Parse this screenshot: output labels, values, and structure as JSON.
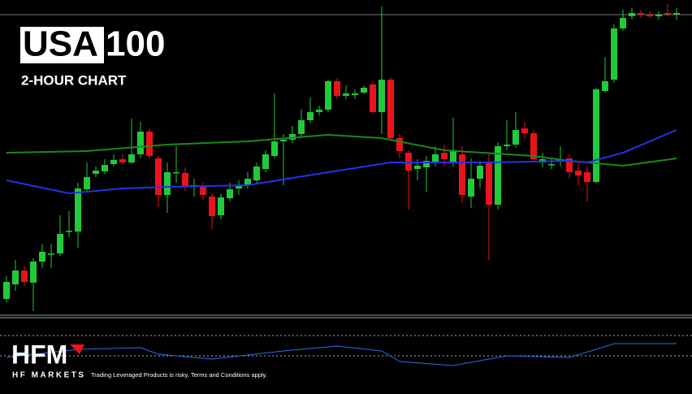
{
  "chart_data": [
    {
      "type": "candlestick",
      "title": {
        "boxed": "USA",
        "plain": "100"
      },
      "subtitle": "2-HOUR CHART",
      "ylim": [
        0,
        390
      ],
      "up_color": "#22c93a",
      "down_color": "#e8141c",
      "open": [
        22,
        40,
        57,
        42,
        68,
        78,
        78,
        105,
        105,
        157,
        176,
        179,
        188,
        194,
        190,
        200,
        228,
        195,
        150,
        177,
        177,
        160,
        160,
        148,
        125,
        146,
        158,
        162,
        168,
        182,
        198,
        216,
        218,
        225,
        242,
        252,
        255,
        290,
        272,
        273,
        276,
        286,
        252,
        292,
        220,
        202,
        182,
        184,
        191,
        202,
        190,
        200,
        148,
        170,
        190,
        138,
        210,
        212,
        232,
        226,
        190,
        188,
        192,
        195,
        180,
        178,
        166,
        278,
        292,
        355,
        370,
        374,
        372,
        370,
        374,
        373
      ],
      "high": [
        50,
        70,
        62,
        72,
        90,
        90,
        125,
        130,
        165,
        190,
        185,
        194,
        200,
        200,
        244,
        240,
        232,
        198,
        190,
        210,
        184,
        170,
        165,
        152,
        152,
        165,
        168,
        178,
        190,
        205,
        275,
        225,
        235,
        255,
        270,
        260,
        292,
        294,
        285,
        280,
        285,
        290,
        382,
        295,
        225,
        205,
        194,
        198,
        210,
        212,
        245,
        210,
        195,
        192,
        200,
        215,
        242,
        252,
        240,
        230,
        202,
        194,
        210,
        200,
        190,
        185,
        282,
        320,
        360,
        378,
        380,
        378,
        376,
        376,
        385,
        380
      ],
      "low": [
        18,
        32,
        38,
        7,
        60,
        60,
        75,
        98,
        85,
        154,
        172,
        176,
        185,
        188,
        188,
        195,
        195,
        135,
        128,
        165,
        155,
        148,
        144,
        108,
        120,
        142,
        150,
        158,
        164,
        178,
        195,
        162,
        214,
        220,
        238,
        248,
        252,
        268,
        268,
        268,
        274,
        250,
        225,
        218,
        195,
        132,
        168,
        154,
        185,
        185,
        185,
        140,
        134,
        158,
        70,
        132,
        205,
        208,
        220,
        190,
        184,
        182,
        185,
        170,
        162,
        142,
        164,
        276,
        288,
        352,
        366,
        368,
        368,
        366,
        370,
        366
      ],
      "close": [
        43,
        57,
        43,
        68,
        80,
        78,
        102,
        106,
        158,
        172,
        180,
        187,
        193,
        190,
        200,
        228,
        198,
        150,
        178,
        178,
        160,
        162,
        150,
        124,
        147,
        157,
        162,
        170,
        185,
        200,
        216,
        218,
        225,
        242,
        252,
        255,
        290,
        272,
        275,
        275,
        282,
        252,
        292,
        220,
        204,
        180,
        186,
        192,
        200,
        194,
        205,
        150,
        170,
        186,
        138,
        210,
        212,
        230,
        226,
        194,
        194,
        188,
        194,
        178,
        174,
        166,
        280,
        290,
        355,
        368,
        374,
        372,
        370,
        372,
        373,
        374
      ],
      "price_line": 372,
      "series": [
        {
          "color": "#1a8a1a",
          "x": [
            0,
            9,
            18,
            27,
            36,
            42,
            49,
            59,
            63,
            69,
            75
          ],
          "values": [
            202,
            204,
            212,
            216,
            224,
            220,
            205,
            198,
            192,
            186,
            195
          ]
        },
        {
          "color": "#2233e6",
          "x": [
            0,
            7,
            13,
            18,
            27,
            36,
            43,
            54,
            63,
            65,
            69,
            75
          ],
          "values": [
            168,
            152,
            158,
            160,
            162,
            178,
            190,
            190,
            192,
            190,
            202,
            230
          ]
        }
      ]
    },
    {
      "type": "line",
      "ylim": [
        0,
        95
      ],
      "levels": [
        72,
        47
      ],
      "series": [
        {
          "color": "#2a6ee8",
          "x": [
            0,
            8,
            15,
            17,
            23,
            31,
            37,
            42,
            44,
            50,
            56,
            63,
            66,
            68,
            75
          ],
          "values": [
            45,
            55,
            57,
            49,
            43,
            53,
            59,
            53,
            40,
            35,
            47,
            45,
            55,
            62,
            62
          ]
        }
      ]
    }
  ],
  "branding": {
    "logo": "HFM",
    "company": "HF MARKETS",
    "disclaimer": "Trading Leveraged Products is risky. Terms and Conditions apply."
  }
}
